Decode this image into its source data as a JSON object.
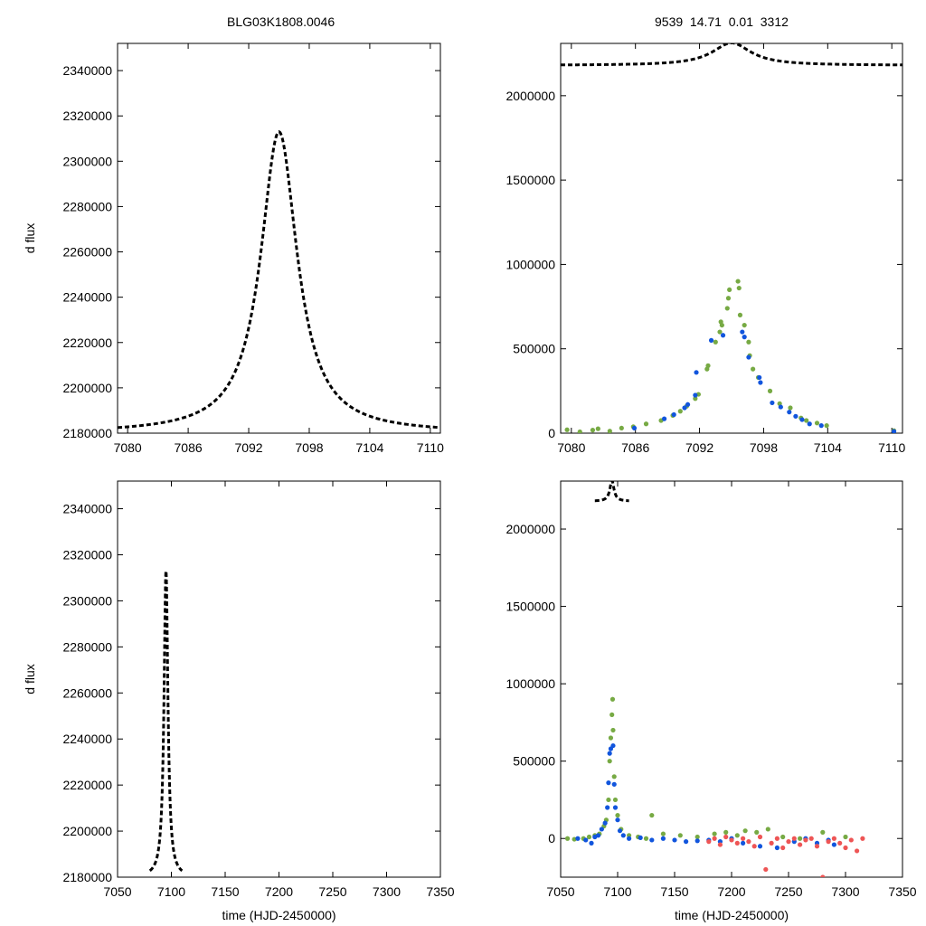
{
  "header": {
    "left_title": "BLG03K1808.0046",
    "right_title": "9539  14.71  0.01  3312"
  },
  "colors": {
    "model": "#000000",
    "series_green": "#77aa44",
    "series_blue": "#1155dd",
    "series_red": "#ee5555"
  },
  "chart_data": [
    {
      "id": "top-left",
      "type": "line",
      "title": "",
      "xlabel": "",
      "ylabel": "d flux",
      "xlim": [
        7079,
        7111
      ],
      "ylim": [
        2180000,
        2352000
      ],
      "xticks": [
        7080,
        7086,
        7092,
        7098,
        7104,
        7110
      ],
      "yticks": [
        2180000,
        2200000,
        2220000,
        2240000,
        2260000,
        2280000,
        2300000,
        2320000,
        2340000
      ],
      "model": {
        "base": 2180000,
        "peak": 2313000,
        "t0": 7095.0,
        "tau": 2.2,
        "style": "dashed"
      }
    },
    {
      "id": "top-right",
      "type": "scatter",
      "title": "",
      "xlabel": "",
      "ylabel": "",
      "xlim": [
        7079,
        7111
      ],
      "ylim": [
        0,
        2310000
      ],
      "xticks": [
        7080,
        7086,
        7092,
        7098,
        7104,
        7110
      ],
      "yticks": [
        0,
        500000,
        1000000,
        1500000,
        2000000
      ],
      "model": {
        "base": 2180000,
        "peak": 2313000,
        "t0": 7095.0,
        "tau": 2.2,
        "style": "dashed"
      },
      "series": [
        {
          "name": "green",
          "color_key": "series_green",
          "points": [
            [
              7079.6,
              20000
            ],
            [
              7080.8,
              8000
            ],
            [
              7082.0,
              18000
            ],
            [
              7082.5,
              26000
            ],
            [
              7083.6,
              12000
            ],
            [
              7084.7,
              30000
            ],
            [
              7085.8,
              38000
            ],
            [
              7087.0,
              55000
            ],
            [
              7088.4,
              75000
            ],
            [
              7089.5,
              105000
            ],
            [
              7090.2,
              130000
            ],
            [
              7090.8,
              160000
            ],
            [
              7091.6,
              205000
            ],
            [
              7091.9,
              230000
            ],
            [
              7092.7,
              380000
            ],
            [
              7092.8,
              400000
            ],
            [
              7093.5,
              540000
            ],
            [
              7093.9,
              600000
            ],
            [
              7094.0,
              660000
            ],
            [
              7094.1,
              640000
            ],
            [
              7094.6,
              740000
            ],
            [
              7094.7,
              800000
            ],
            [
              7094.8,
              850000
            ],
            [
              7095.6,
              900000
            ],
            [
              7095.7,
              860000
            ],
            [
              7095.8,
              700000
            ],
            [
              7096.2,
              640000
            ],
            [
              7096.6,
              540000
            ],
            [
              7096.7,
              460000
            ],
            [
              7097.0,
              380000
            ],
            [
              7097.5,
              330000
            ],
            [
              7098.6,
              250000
            ],
            [
              7099.5,
              175000
            ],
            [
              7100.5,
              150000
            ],
            [
              7101.5,
              90000
            ],
            [
              7102.0,
              75000
            ],
            [
              7103.0,
              60000
            ],
            [
              7103.9,
              45000
            ],
            [
              7110.2,
              15000
            ]
          ]
        },
        {
          "name": "blue",
          "color_key": "series_blue",
          "points": [
            [
              7085.9,
              30000
            ],
            [
              7088.7,
              85000
            ],
            [
              7089.6,
              110000
            ],
            [
              7090.6,
              150000
            ],
            [
              7090.9,
              170000
            ],
            [
              7091.6,
              225000
            ],
            [
              7091.7,
              360000
            ],
            [
              7093.1,
              550000
            ],
            [
              7094.2,
              580000
            ],
            [
              7096.0,
              600000
            ],
            [
              7096.2,
              570000
            ],
            [
              7096.6,
              450000
            ],
            [
              7097.6,
              330000
            ],
            [
              7097.7,
              300000
            ],
            [
              7098.8,
              180000
            ],
            [
              7099.6,
              155000
            ],
            [
              7100.4,
              125000
            ],
            [
              7101.0,
              100000
            ],
            [
              7101.6,
              80000
            ],
            [
              7102.3,
              55000
            ],
            [
              7103.4,
              45000
            ],
            [
              7110.2,
              10000
            ]
          ]
        }
      ]
    },
    {
      "id": "bottom-left",
      "type": "line",
      "title": "",
      "xlabel": "time (HJD-2450000)",
      "ylabel": "d flux",
      "xlim": [
        7050,
        7350
      ],
      "ylim": [
        2180000,
        2352000
      ],
      "xticks": [
        7050,
        7100,
        7150,
        7200,
        7250,
        7300,
        7350
      ],
      "yticks": [
        2180000,
        2200000,
        2220000,
        2240000,
        2260000,
        2280000,
        2300000,
        2320000,
        2340000
      ],
      "model": {
        "base": 2180000,
        "peak": 2313000,
        "t0": 7095.0,
        "tau": 2.2,
        "range": [
          7080,
          7110
        ],
        "style": "dashed"
      }
    },
    {
      "id": "bottom-right",
      "type": "scatter",
      "title": "",
      "xlabel": "time (HJD-2450000)",
      "ylabel": "",
      "xlim": [
        7050,
        7350
      ],
      "ylim": [
        -250000,
        2310000
      ],
      "xticks": [
        7050,
        7100,
        7150,
        7200,
        7250,
        7300,
        7350
      ],
      "yticks": [
        0,
        500000,
        1000000,
        1500000,
        2000000
      ],
      "model": {
        "base": 2180000,
        "peak": 2313000,
        "t0": 7095.0,
        "tau": 2.2,
        "range": [
          7080,
          7110
        ],
        "style": "dashed"
      },
      "series": [
        {
          "name": "green",
          "color_key": "series_green",
          "points": [
            [
              7056,
              0
            ],
            [
              7062,
              -5000
            ],
            [
              7070,
              0
            ],
            [
              7075,
              10000
            ],
            [
              7080,
              20000
            ],
            [
              7084,
              30000
            ],
            [
              7088,
              80000
            ],
            [
              7090,
              120000
            ],
            [
              7092,
              250000
            ],
            [
              7093,
              500000
            ],
            [
              7094,
              650000
            ],
            [
              7095,
              800000
            ],
            [
              7095.6,
              900000
            ],
            [
              7096,
              700000
            ],
            [
              7097,
              400000
            ],
            [
              7098,
              250000
            ],
            [
              7100,
              150000
            ],
            [
              7103,
              60000
            ],
            [
              7110,
              20000
            ],
            [
              7118,
              10000
            ],
            [
              7125,
              0
            ],
            [
              7130,
              150000
            ],
            [
              7140,
              30000
            ],
            [
              7155,
              20000
            ],
            [
              7170,
              10000
            ],
            [
              7185,
              30000
            ],
            [
              7195,
              40000
            ],
            [
              7205,
              20000
            ],
            [
              7212,
              50000
            ],
            [
              7222,
              40000
            ],
            [
              7232,
              60000
            ],
            [
              7245,
              10000
            ],
            [
              7260,
              0
            ],
            [
              7280,
              40000
            ],
            [
              7300,
              10000
            ]
          ]
        },
        {
          "name": "blue",
          "color_key": "series_blue",
          "points": [
            [
              7065,
              0
            ],
            [
              7072,
              -10000
            ],
            [
              7077,
              -30000
            ],
            [
              7080,
              10000
            ],
            [
              7083,
              20000
            ],
            [
              7086,
              60000
            ],
            [
              7089,
              100000
            ],
            [
              7091,
              200000
            ],
            [
              7092,
              360000
            ],
            [
              7093,
              550000
            ],
            [
              7094,
              580000
            ],
            [
              7096,
              600000
            ],
            [
              7097,
              350000
            ],
            [
              7098,
              200000
            ],
            [
              7100,
              120000
            ],
            [
              7102,
              50000
            ],
            [
              7105,
              20000
            ],
            [
              7110,
              0
            ],
            [
              7120,
              5000
            ],
            [
              7130,
              -10000
            ],
            [
              7140,
              0
            ],
            [
              7150,
              -10000
            ],
            [
              7160,
              -20000
            ],
            [
              7170,
              -15000
            ],
            [
              7180,
              -10000
            ],
            [
              7190,
              -20000
            ],
            [
              7200,
              0
            ],
            [
              7210,
              -30000
            ],
            [
              7225,
              -50000
            ],
            [
              7240,
              -60000
            ],
            [
              7255,
              -20000
            ],
            [
              7265,
              0
            ],
            [
              7275,
              -30000
            ],
            [
              7285,
              -10000
            ],
            [
              7290,
              -40000
            ]
          ]
        },
        {
          "name": "red",
          "color_key": "series_red",
          "points": [
            [
              7180,
              -20000
            ],
            [
              7185,
              0
            ],
            [
              7190,
              -40000
            ],
            [
              7195,
              10000
            ],
            [
              7200,
              -10000
            ],
            [
              7205,
              -30000
            ],
            [
              7210,
              0
            ],
            [
              7215,
              -20000
            ],
            [
              7220,
              -50000
            ],
            [
              7225,
              10000
            ],
            [
              7230,
              -200000
            ],
            [
              7235,
              -30000
            ],
            [
              7240,
              0
            ],
            [
              7245,
              -60000
            ],
            [
              7250,
              -20000
            ],
            [
              7255,
              0
            ],
            [
              7260,
              -40000
            ],
            [
              7265,
              -10000
            ],
            [
              7270,
              0
            ],
            [
              7275,
              -50000
            ],
            [
              7280,
              -250000
            ],
            [
              7285,
              -20000
            ],
            [
              7290,
              0
            ],
            [
              7295,
              -30000
            ],
            [
              7300,
              -60000
            ],
            [
              7305,
              -10000
            ],
            [
              7310,
              -80000
            ],
            [
              7315,
              0
            ]
          ]
        }
      ]
    }
  ]
}
